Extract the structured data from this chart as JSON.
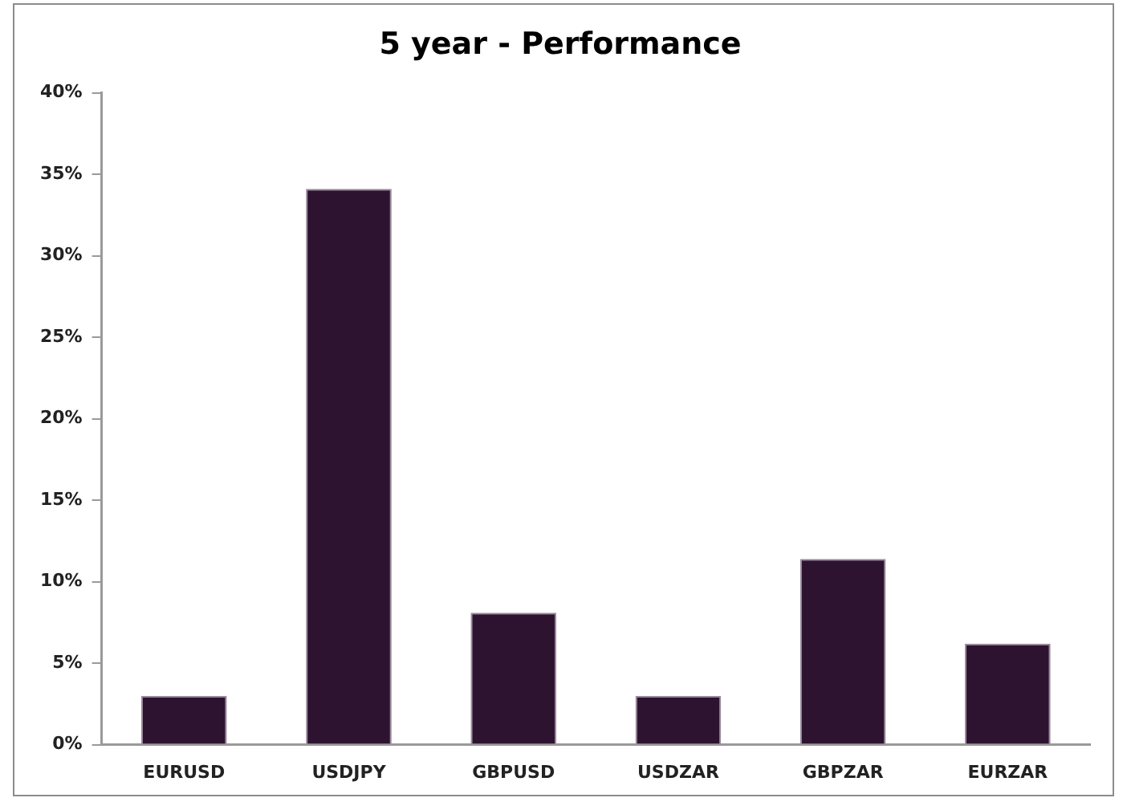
{
  "chart_data": {
    "type": "bar",
    "title": "5 year - Performance",
    "categories": [
      "EURUSD",
      "USDJPY",
      "GBPUSD",
      "USDZAR",
      "GBPZAR",
      "EURZAR"
    ],
    "values": [
      3.0,
      34.1,
      8.1,
      3.0,
      11.4,
      6.2
    ],
    "color": "#2e1330",
    "ylim": [
      0,
      40
    ],
    "yticks": [
      {
        "value": 0,
        "label": "0%"
      },
      {
        "value": 5,
        "label": "5%"
      },
      {
        "value": 10,
        "label": "10%"
      },
      {
        "value": 15,
        "label": "15%"
      },
      {
        "value": 20,
        "label": "20%"
      },
      {
        "value": 25,
        "label": "25%"
      },
      {
        "value": 30,
        "label": "30%"
      },
      {
        "value": 35,
        "label": "35%"
      },
      {
        "value": 40,
        "label": "40%"
      }
    ],
    "grid": false,
    "legend": false
  }
}
